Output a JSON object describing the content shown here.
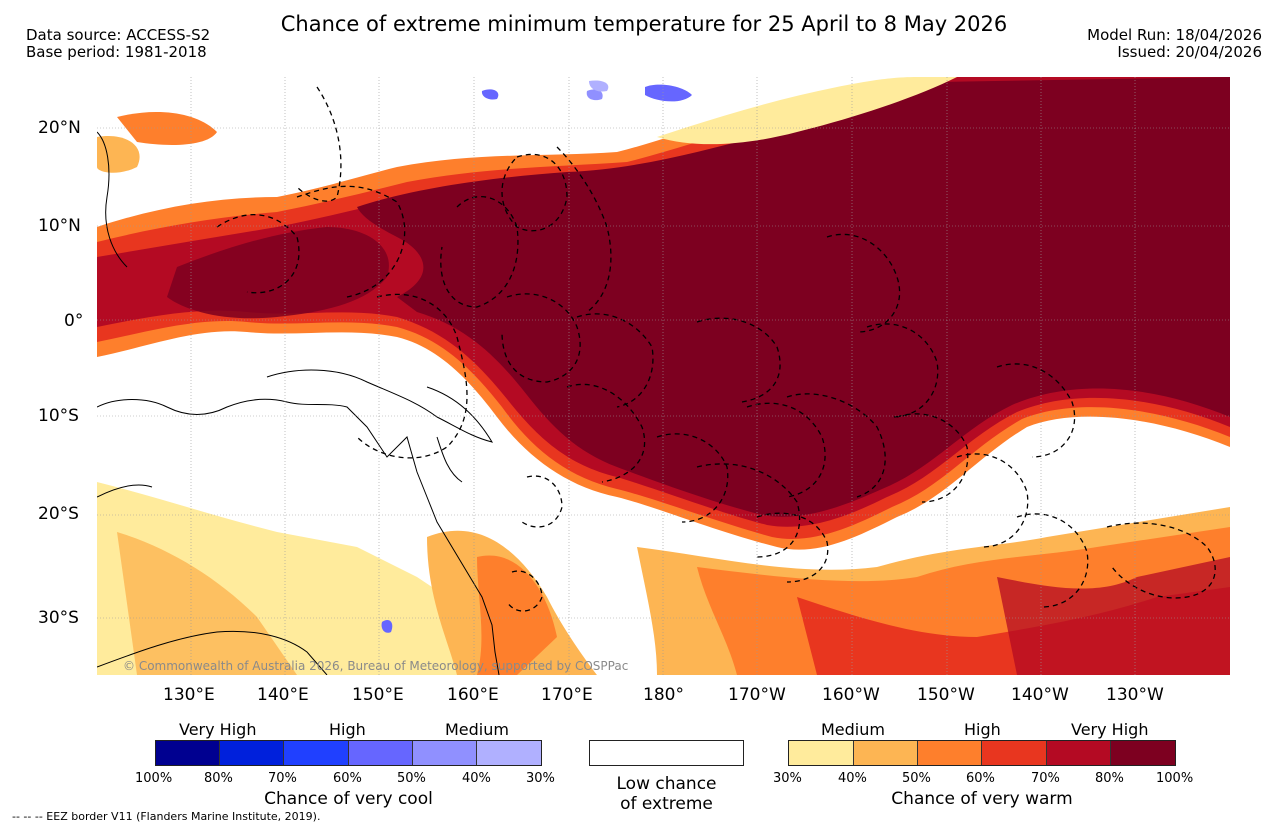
{
  "header": {
    "title": "Chance of extreme minimum temperature for 25 April to 8 May 2026",
    "data_source": "Data source: ACCESS-S2",
    "base_period": "Base period: 1981-2018",
    "model_run": "Model Run: 18/04/2026",
    "issued": "Issued: 20/04/2026"
  },
  "map": {
    "lat_labels": [
      "20°N",
      "10°N",
      "0°",
      "10°S",
      "20°S",
      "30°S"
    ],
    "lon_labels": [
      "130°E",
      "140°E",
      "150°E",
      "160°E",
      "170°E",
      "180°",
      "170°W",
      "160°W",
      "150°W",
      "140°W",
      "130°W"
    ],
    "copyright": "© Commonwealth of Australia 2026, Bureau of Meteorology, supported by COSPPac",
    "colors": {
      "ocean": "#ffffff",
      "very_warm_100": "#7d0020",
      "warm_80": "#b40a23",
      "warm_70": "#e8361f",
      "warm_60": "#fe7f2c",
      "warm_50": "#fdb553",
      "warm_40": "#ffeb9c",
      "cool": "#6666ff",
      "coast": "#000000"
    }
  },
  "legend_cool": {
    "level_labels": [
      "Very High",
      "High",
      "Medium"
    ],
    "ticks": [
      "100%",
      "80%",
      "70%",
      "60%",
      "50%",
      "40%",
      "30%"
    ],
    "colors": [
      "#000090",
      "#0020dc",
      "#2040ff",
      "#6666ff",
      "#9090ff",
      "#b0b0ff"
    ],
    "caption": "Chance of very cool"
  },
  "legend_low": {
    "caption_line1": "Low chance",
    "caption_line2": "of extreme",
    "color": "#ffffff"
  },
  "legend_warm": {
    "level_labels": [
      "Medium",
      "High",
      "Very High"
    ],
    "ticks": [
      "30%",
      "40%",
      "50%",
      "60%",
      "70%",
      "80%",
      "100%"
    ],
    "colors": [
      "#ffeb9c",
      "#fdb553",
      "#fe7f2c",
      "#e8361f",
      "#b40a23",
      "#7d0020"
    ],
    "caption": "Chance of very warm"
  },
  "footer": {
    "eez_note": "--  --  -- EEZ border V11 (Flanders Marine Institute, 2019)."
  }
}
